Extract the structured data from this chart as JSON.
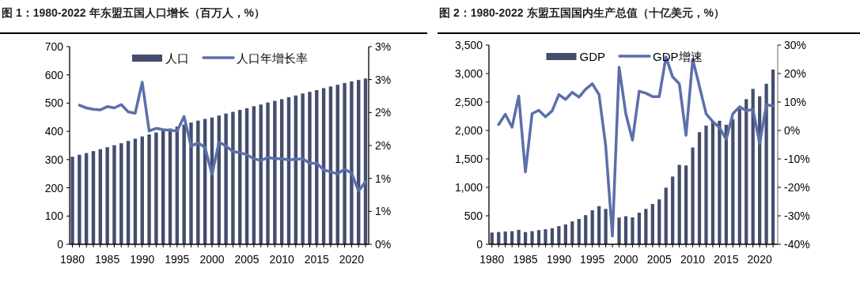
{
  "chart_data": [
    {
      "type": "bar",
      "title": "图 1：1980-2022 年东盟五国人口增长（百万人，%）",
      "x": [
        1980,
        1981,
        1982,
        1983,
        1984,
        1985,
        1986,
        1987,
        1988,
        1989,
        1990,
        1991,
        1992,
        1993,
        1994,
        1995,
        1996,
        1997,
        1998,
        1999,
        2000,
        2001,
        2002,
        2003,
        2004,
        2005,
        2006,
        2007,
        2008,
        2009,
        2010,
        2011,
        2012,
        2013,
        2014,
        2015,
        2016,
        2017,
        2018,
        2019,
        2020,
        2021,
        2022
      ],
      "xlim": [
        1979.6,
        2022.45
      ],
      "xticks": [
        1980,
        1985,
        1990,
        1995,
        2000,
        2005,
        2010,
        2015,
        2020
      ],
      "ylim": [
        0,
        700
      ],
      "yticks": [
        0,
        100,
        200,
        300,
        400,
        500,
        600,
        700
      ],
      "y2lim": [
        0,
        3
      ],
      "y2ticks": [
        {
          "value": 0,
          "label": "0%"
        },
        {
          "value": 0.5,
          "label": "1%"
        },
        {
          "value": 1,
          "label": "1%"
        },
        {
          "value": 1.5,
          "label": "2%"
        },
        {
          "value": 2,
          "label": "2%"
        },
        {
          "value": 2.5,
          "label": "3%"
        },
        {
          "value": 3,
          "label": "3%"
        }
      ],
      "legend": "top",
      "series": [
        {
          "name": "人口",
          "color": "#444d6e",
          "values": [
            310,
            317,
            323,
            330,
            337,
            344,
            351,
            358,
            366,
            374,
            382,
            389,
            396,
            403,
            410,
            417,
            424,
            431,
            438,
            444,
            449,
            456,
            463,
            469,
            476,
            482,
            489,
            495,
            502,
            508,
            514,
            521,
            527,
            534,
            540,
            546,
            553,
            559,
            565,
            571,
            577,
            582,
            587
          ]
        },
        {
          "name": "人口年增长率",
          "type": "line",
          "axis": "y2",
          "color": "#5b6fab",
          "values": [
            null,
            2.11,
            2.07,
            2.05,
            2.04,
            2.09,
            2.07,
            2.12,
            2.01,
            1.99,
            2.46,
            1.72,
            1.76,
            1.74,
            1.73,
            1.72,
            1.94,
            1.49,
            1.54,
            1.47,
            1.06,
            1.55,
            1.49,
            1.41,
            1.39,
            1.36,
            1.3,
            1.27,
            1.32,
            1.3,
            1.3,
            1.28,
            1.29,
            1.3,
            1.23,
            1.23,
            1.13,
            1.1,
            1.07,
            1.14,
            1.08,
            0.81,
            0.95
          ]
        }
      ]
    },
    {
      "type": "bar",
      "title": "图 2：1980-2022 东盟五国国内生产总值（十亿美元，%）",
      "x": [
        1980,
        1981,
        1982,
        1983,
        1984,
        1985,
        1986,
        1987,
        1988,
        1989,
        1990,
        1991,
        1992,
        1993,
        1994,
        1995,
        1996,
        1997,
        1998,
        1999,
        2000,
        2001,
        2002,
        2003,
        2004,
        2005,
        2006,
        2007,
        2008,
        2009,
        2010,
        2011,
        2012,
        2013,
        2014,
        2015,
        2016,
        2017,
        2018,
        2019,
        2020,
        2021,
        2022
      ],
      "xlim": [
        1979.55,
        2022.7
      ],
      "xticks": [
        1980,
        1985,
        1990,
        1995,
        2000,
        2005,
        2010,
        2015,
        2020
      ],
      "ylim": [
        0,
        3500
      ],
      "yticks": [
        0,
        500,
        {
          "value": 1000,
          "label": "1,000"
        },
        {
          "value": 1500,
          "label": "1,500"
        },
        {
          "value": 2000,
          "label": "2,000"
        },
        {
          "value": 2500,
          "label": "2,500"
        },
        {
          "value": 3000,
          "label": "3,000"
        },
        {
          "value": 3500,
          "label": "3,500"
        }
      ],
      "y2lim": [
        -40,
        30
      ],
      "y2ticks": [
        {
          "value": -40,
          "label": "-40%"
        },
        {
          "value": -30,
          "label": "-30%"
        },
        {
          "value": -20,
          "label": "-20%"
        },
        {
          "value": -10,
          "label": "-10%"
        },
        {
          "value": 0,
          "label": "0%"
        },
        {
          "value": 10,
          "label": "10%"
        },
        {
          "value": 20,
          "label": "20%"
        },
        {
          "value": 30,
          "label": "30%"
        }
      ],
      "legend": "top",
      "series": [
        {
          "name": "GDP",
          "color": "#444d6e",
          "values": [
            206,
            215,
            225,
            230,
            253,
            215,
            230,
            249,
            263,
            282,
            320,
            349,
            402,
            445,
            512,
            598,
            670,
            622,
            null,
            469,
            493,
            473,
            555,
            622,
            708,
            789,
            995,
            1190,
            1395,
            1385,
            1700,
            1970,
            2085,
            2160,
            2170,
            2100,
            2200,
            2380,
            2550,
            2730,
            2600,
            2820,
            3070
          ]
        },
        {
          "name": "GDP增速",
          "type": "line",
          "axis": "y2",
          "color": "#5b6fab",
          "values": [
            null,
            2.1,
            5.7,
            1.1,
            12.1,
            -14.6,
            5.9,
            7.1,
            4.8,
            6.9,
            12.6,
            10.9,
            13.4,
            11.7,
            14.5,
            16.4,
            12.6,
            -5.5,
            -37.1,
            22.2,
            5.9,
            -3.4,
            13.8,
            13.1,
            11.9,
            11.9,
            25.8,
            18.8,
            16.4,
            -1.7,
            25.0,
            15.5,
            5.9,
            3.1,
            1.0,
            -3.2,
            5.9,
            8.3,
            6.9,
            7.4,
            -4.6,
            9.0,
            8.6
          ]
        }
      ]
    }
  ]
}
